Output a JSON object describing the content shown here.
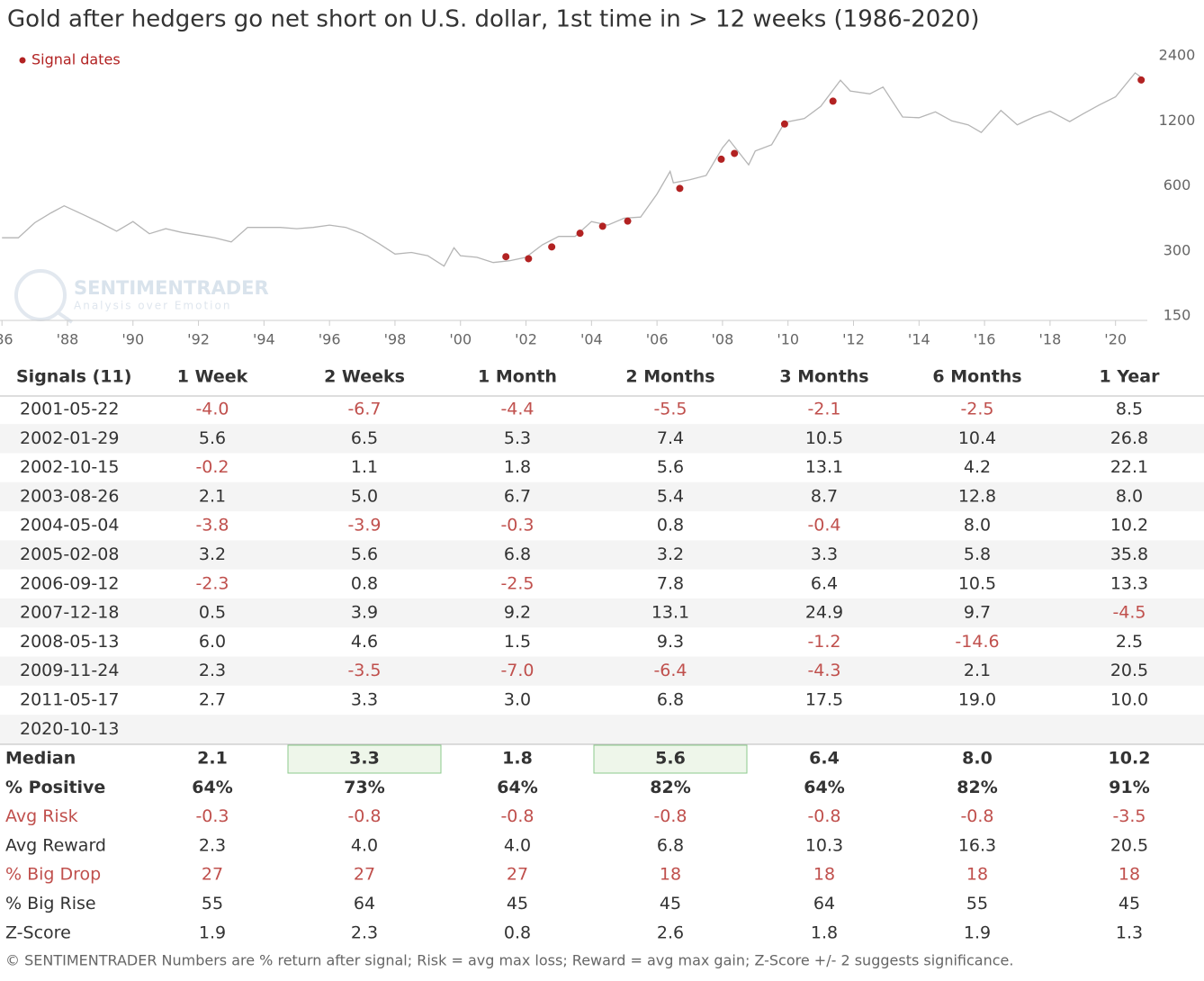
{
  "chart_data": {
    "type": "line",
    "title": "Gold after hedgers go net short on U.S. dollar, 1st time in > 12 weeks (1986-2020)",
    "log_scale": true,
    "grid": false,
    "legend_corner": "top-left",
    "watermark": {
      "title": "SENTIMENTRADER",
      "subtitle": "Analysis over Emotion"
    },
    "xlim": [
      1985.94,
      2020.97
    ],
    "xticks": [
      {
        "value": 1986,
        "label": "'86"
      },
      {
        "value": 1988,
        "label": "'88"
      },
      {
        "value": 1990,
        "label": "'90"
      },
      {
        "value": 1992,
        "label": "'92"
      },
      {
        "value": 1994,
        "label": "'94"
      },
      {
        "value": 1996,
        "label": "'96"
      },
      {
        "value": 1998,
        "label": "'98"
      },
      {
        "value": 2000,
        "label": "'00"
      },
      {
        "value": 2002,
        "label": "'02"
      },
      {
        "value": 2004,
        "label": "'04"
      },
      {
        "value": 2006,
        "label": "'06"
      },
      {
        "value": 2008,
        "label": "'08"
      },
      {
        "value": 2010,
        "label": "'10"
      },
      {
        "value": 2012,
        "label": "'12"
      },
      {
        "value": 2014,
        "label": "'14"
      },
      {
        "value": 2016,
        "label": "'16"
      },
      {
        "value": 2018,
        "label": "'18"
      },
      {
        "value": 2020,
        "label": "'20"
      }
    ],
    "ylim": [
      150,
      2400
    ],
    "yticks": [
      150,
      300,
      600,
      1200,
      2400
    ],
    "series": [
      {
        "type": "line",
        "color": "#b5b5b5",
        "x": [
          1986.0,
          1986.5,
          1987.0,
          1987.5,
          1987.9,
          1988.5,
          1989.0,
          1989.5,
          1990.0,
          1990.5,
          1991.0,
          1991.5,
          1992.0,
          1992.5,
          1993.0,
          1993.5,
          1994.0,
          1994.5,
          1995.0,
          1995.5,
          1996.0,
          1996.5,
          1997.0,
          1997.5,
          1998.0,
          1998.5,
          1999.0,
          1999.5,
          1999.8,
          2000.0,
          2000.5,
          2001.0,
          2001.5,
          2002.0,
          2002.5,
          2003.0,
          2003.5,
          2004.0,
          2004.5,
          2005.0,
          2005.5,
          2006.0,
          2006.4,
          2006.5,
          2007.0,
          2007.5,
          2008.0,
          2008.2,
          2008.8,
          2009.0,
          2009.5,
          2009.9,
          2010.5,
          2011.0,
          2011.6,
          2011.9,
          2012.5,
          2012.9,
          2013.5,
          2014.0,
          2014.5,
          2015.0,
          2015.5,
          2015.9,
          2016.5,
          2017.0,
          2017.5,
          2018.0,
          2018.6,
          2019.0,
          2019.5,
          2020.0,
          2020.6,
          2020.8
        ],
        "values": [
          345,
          345,
          405,
          450,
          485,
          440,
          405,
          370,
          410,
          360,
          380,
          365,
          355,
          345,
          330,
          385,
          385,
          385,
          380,
          385,
          395,
          385,
          360,
          325,
          290,
          295,
          285,
          255,
          310,
          285,
          280,
          265,
          270,
          280,
          320,
          350,
          350,
          410,
          395,
          425,
          430,
          550,
          700,
          620,
          640,
          670,
          900,
          980,
          750,
          870,
          930,
          1180,
          1230,
          1400,
          1850,
          1650,
          1600,
          1720,
          1250,
          1240,
          1320,
          1200,
          1150,
          1060,
          1340,
          1150,
          1250,
          1330,
          1190,
          1290,
          1420,
          1550,
          2000,
          1900
        ]
      },
      {
        "type": "scatter",
        "name": "Signal dates",
        "color": "#b22222",
        "x": [
          "2001-05-22",
          "2002-01-29",
          "2002-10-15",
          "2003-08-26",
          "2004-05-04",
          "2005-02-08",
          "2006-09-12",
          "2007-12-18",
          "2008-05-13",
          "2009-11-24",
          "2011-05-17",
          "2020-10-13"
        ],
        "values": [
          282,
          276,
          313,
          362,
          390,
          412,
          584,
          797,
          848,
          1160,
          1480,
          1855
        ]
      }
    ]
  },
  "table": {
    "columns": [
      "Signals (11)",
      "1 Week",
      "2 Weeks",
      "1 Month",
      "2 Months",
      "3 Months",
      "6 Months",
      "1 Year"
    ],
    "rows": [
      {
        "date": "2001-05-22",
        "values": [
          "-4.0",
          "-6.7",
          "-4.4",
          "-5.5",
          "-2.1",
          "-2.5",
          "8.5"
        ]
      },
      {
        "date": "2002-01-29",
        "values": [
          "5.6",
          "6.5",
          "5.3",
          "7.4",
          "10.5",
          "10.4",
          "26.8"
        ]
      },
      {
        "date": "2002-10-15",
        "values": [
          "-0.2",
          "1.1",
          "1.8",
          "5.6",
          "13.1",
          "4.2",
          "22.1"
        ]
      },
      {
        "date": "2003-08-26",
        "values": [
          "2.1",
          "5.0",
          "6.7",
          "5.4",
          "8.7",
          "12.8",
          "8.0"
        ]
      },
      {
        "date": "2004-05-04",
        "values": [
          "-3.8",
          "-3.9",
          "-0.3",
          "0.8",
          "-0.4",
          "8.0",
          "10.2"
        ]
      },
      {
        "date": "2005-02-08",
        "values": [
          "3.2",
          "5.6",
          "6.8",
          "3.2",
          "3.3",
          "5.8",
          "35.8"
        ]
      },
      {
        "date": "2006-09-12",
        "values": [
          "-2.3",
          "0.8",
          "-2.5",
          "7.8",
          "6.4",
          "10.5",
          "13.3"
        ]
      },
      {
        "date": "2007-12-18",
        "values": [
          "0.5",
          "3.9",
          "9.2",
          "13.1",
          "24.9",
          "9.7",
          "-4.5"
        ]
      },
      {
        "date": "2008-05-13",
        "values": [
          "6.0",
          "4.6",
          "1.5",
          "9.3",
          "-1.2",
          "-14.6",
          "2.5"
        ]
      },
      {
        "date": "2009-11-24",
        "values": [
          "2.3",
          "-3.5",
          "-7.0",
          "-6.4",
          "-4.3",
          "2.1",
          "20.5"
        ]
      },
      {
        "date": "2011-05-17",
        "values": [
          "2.7",
          "3.3",
          "3.0",
          "6.8",
          "17.5",
          "19.0",
          "10.0"
        ]
      },
      {
        "date": "2020-10-13",
        "values": []
      }
    ],
    "summary": [
      {
        "label": "Median",
        "bold": true,
        "highlight": [
          1,
          3
        ],
        "values": [
          "2.1",
          "3.3",
          "1.8",
          "5.6",
          "6.4",
          "8.0",
          "10.2"
        ]
      },
      {
        "label": "% Positive",
        "bold": true,
        "values": [
          "64%",
          "73%",
          "64%",
          "82%",
          "64%",
          "82%",
          "91%"
        ]
      },
      {
        "label": "Avg Risk",
        "red": true,
        "values": [
          "-0.3",
          "-0.8",
          "-0.8",
          "-0.8",
          "-0.8",
          "-0.8",
          "-3.5"
        ]
      },
      {
        "label": "Avg Reward",
        "values": [
          "2.3",
          "4.0",
          "4.0",
          "6.8",
          "10.3",
          "16.3",
          "20.5"
        ]
      },
      {
        "label": "% Big Drop",
        "red": true,
        "values": [
          "27",
          "27",
          "27",
          "18",
          "18",
          "18",
          "18"
        ]
      },
      {
        "label": "% Big Rise",
        "values": [
          "55",
          "64",
          "45",
          "45",
          "64",
          "55",
          "45"
        ]
      },
      {
        "label": "Z-Score",
        "values": [
          "1.9",
          "2.3",
          "0.8",
          "2.6",
          "1.8",
          "1.9",
          "1.3"
        ]
      }
    ]
  },
  "footer": "© SENTIMENTRADER  Numbers are % return after signal; Risk = avg max loss; Reward = avg max gain; Z-Score +/- 2 suggests significance."
}
